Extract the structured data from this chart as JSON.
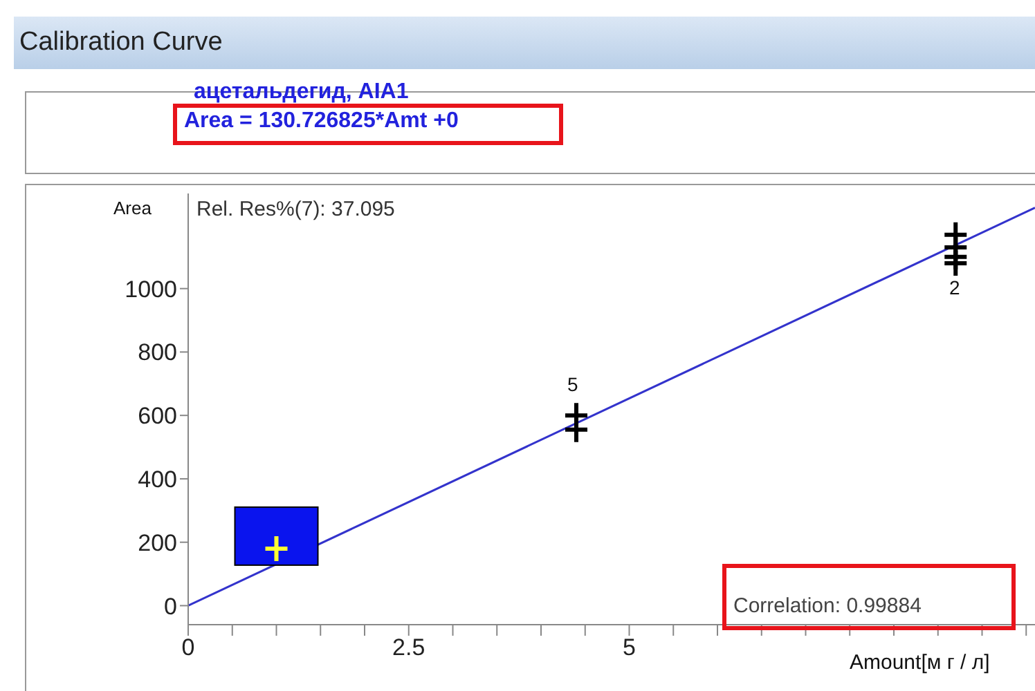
{
  "chart_data": {
    "type": "scatter",
    "title": "Calibration Curve",
    "subtitle": "ацетальдегид, AIA1",
    "xlabel": "Amount[м г / л]",
    "ylabel": "Area",
    "annotations": [
      "Area = 130.726825*Amt +0",
      "Rel. Res%(7): 37.095",
      "Correlation: 0.99884",
      "5",
      "2"
    ],
    "series": [
      {
        "type": "scatter",
        "marker": "cross",
        "color": "#000000",
        "colors": [
          "#ffff33",
          "#000000",
          "#000000",
          "#000000",
          "#000000",
          "#000000",
          "#000000"
        ],
        "x": [
          1.0,
          4.4,
          4.4,
          8.7,
          8.7,
          8.7,
          8.7
        ],
        "values": [
          180,
          555,
          600,
          1170,
          1130,
          1100,
          1080
        ]
      },
      {
        "type": "line",
        "marker": "none",
        "color": "#3333cc",
        "x": [
          0,
          9.6
        ],
        "values": [
          0,
          1255
        ]
      }
    ],
    "xlim": [
      0,
      9.6
    ],
    "ylim": [
      -60,
      1300
    ],
    "xticks": [
      0,
      {
        "value": 0.5,
        "label": null
      },
      {
        "value": 1,
        "label": null
      },
      {
        "value": 1.5,
        "label": null
      },
      {
        "value": 2,
        "label": null
      },
      2.5,
      {
        "value": 3,
        "label": null
      },
      {
        "value": 3.5,
        "label": null
      },
      {
        "value": 4,
        "label": null
      },
      {
        "value": 4.5,
        "label": null
      },
      5,
      {
        "value": 5.5,
        "label": null
      },
      {
        "value": 6,
        "label": null
      },
      {
        "value": 6.5,
        "label": null
      },
      {
        "value": 7,
        "label": null
      },
      {
        "value": 7.5,
        "label": null
      },
      {
        "value": 8,
        "label": null
      },
      {
        "value": 8.5,
        "label": null
      },
      {
        "value": 9,
        "label": null
      },
      {
        "value": 9.5,
        "label": null
      }
    ],
    "yticks": [
      0,
      200,
      400,
      600,
      800,
      1000
    ]
  }
}
